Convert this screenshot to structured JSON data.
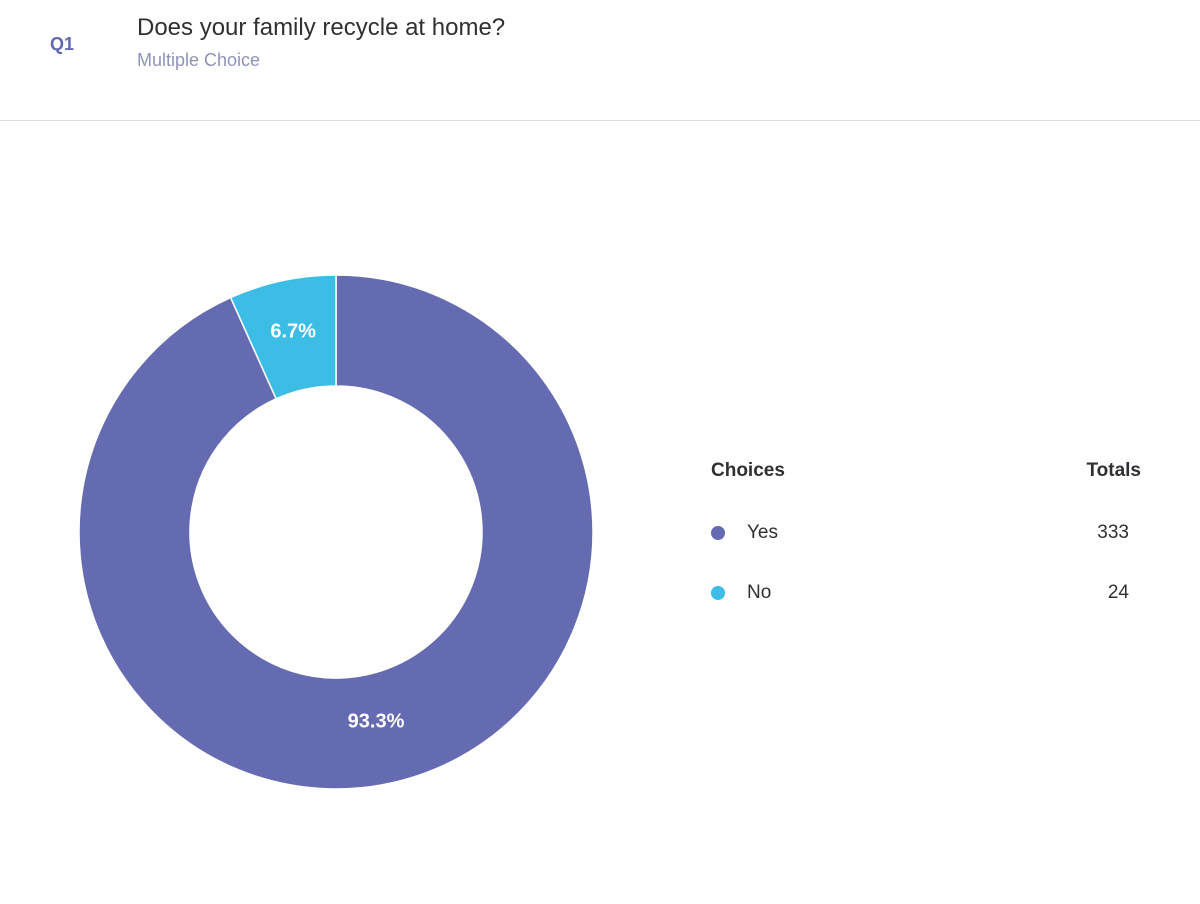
{
  "question": {
    "number": "Q1",
    "title": "Does your family recycle at home?",
    "type": "Multiple Choice"
  },
  "legend": {
    "choices_header": "Choices",
    "totals_header": "Totals"
  },
  "colors": {
    "yes": "#646bb0",
    "no": "#3bbde6"
  },
  "chart_data": {
    "type": "pie",
    "donut": true,
    "title": "",
    "categories": [
      "Yes",
      "No"
    ],
    "values": [
      333,
      24
    ],
    "percent_labels": [
      "93.3%",
      "6.7%"
    ],
    "legend_position": "right"
  }
}
